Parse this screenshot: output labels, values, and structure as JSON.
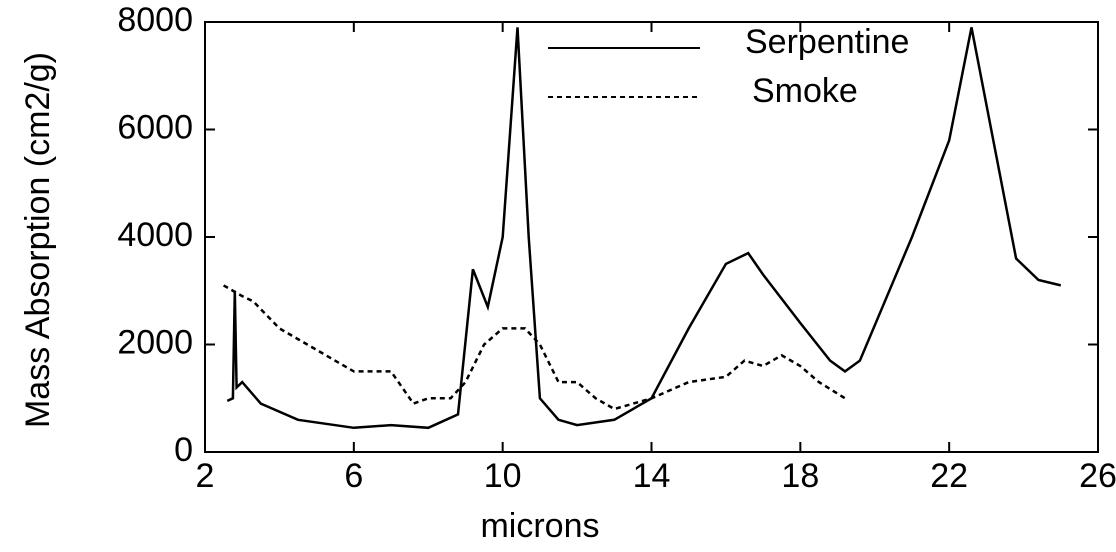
{
  "chart_data": {
    "type": "line",
    "x_label": "microns",
    "y_label": "Mass Absorption (cm2/g)",
    "xlim": [
      2,
      26
    ],
    "ylim": [
      0,
      8000
    ],
    "xticks": [
      2,
      6,
      10,
      14,
      18,
      22,
      26
    ],
    "yticks": [
      0,
      2000,
      4000,
      6000,
      8000
    ],
    "series": [
      {
        "name": "Serpentine",
        "color": "#000000",
        "dash": "solid",
        "x": [
          2.6,
          2.75,
          2.8,
          2.85,
          3.0,
          3.5,
          4.5,
          6,
          7,
          8,
          8.8,
          9.2,
          9.6,
          10.0,
          10.4,
          10.7,
          11.0,
          11.5,
          12.0,
          13,
          14,
          15,
          16,
          16.6,
          17,
          18,
          18.8,
          19.2,
          19.6,
          21,
          22,
          22.6,
          23.8,
          24.4,
          25
        ],
        "values": [
          950,
          1000,
          3000,
          1200,
          1300,
          900,
          600,
          450,
          500,
          450,
          700,
          3400,
          2700,
          4000,
          7900,
          4000,
          1000,
          600,
          500,
          600,
          1000,
          2300,
          3500,
          3700,
          3300,
          2400,
          1700,
          1500,
          1700,
          4000,
          5800,
          7900,
          3600,
          3200,
          3100
        ]
      },
      {
        "name": "Smoke",
        "color": "#000000",
        "dash": "dashed",
        "x": [
          2.5,
          3.0,
          3.3,
          4.0,
          5.0,
          6.0,
          7.0,
          7.6,
          8.0,
          8.6,
          9.0,
          9.5,
          10.0,
          10.6,
          11.0,
          11.5,
          12.0,
          12.5,
          13.0,
          14.0,
          15.0,
          16.0,
          16.5,
          17.0,
          17.5,
          18.0,
          18.5,
          19.2
        ],
        "values": [
          3100,
          2900,
          2800,
          2300,
          1900,
          1500,
          1500,
          900,
          1000,
          1000,
          1300,
          2000,
          2300,
          2300,
          2000,
          1300,
          1300,
          1000,
          800,
          1000,
          1300,
          1400,
          1700,
          1600,
          1800,
          1600,
          1300,
          1000
        ]
      }
    ]
  }
}
